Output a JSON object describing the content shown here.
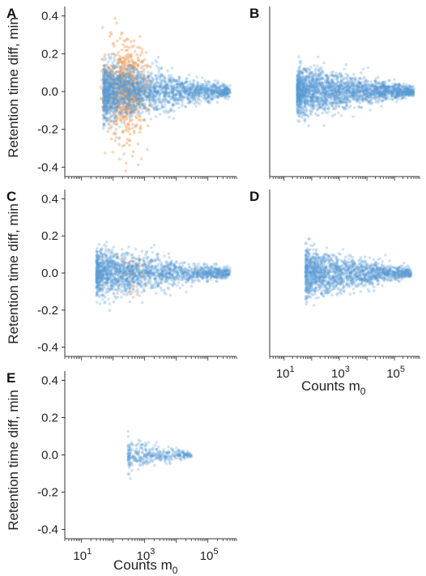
{
  "figure": {
    "ylabel": "Retention time diff, min",
    "xlabel": "Counts m",
    "xlabel_subscript": "0",
    "colors": {
      "series_1": "#5b9bd5",
      "series_2": "#f4a460",
      "axis": "#333333"
    }
  },
  "chart_data": [
    {
      "panel": "A",
      "type": "scatter",
      "x_scale": "log",
      "xlim": [
        3,
        800000
      ],
      "ylim": [
        -0.45,
        0.45
      ],
      "yticks": [
        "0.4",
        "0.2",
        "0.0",
        "-0.2",
        "-0.4"
      ],
      "xticks": [],
      "series": [
        {
          "color": "#f4a460",
          "x_range": [
            40,
            1500
          ],
          "y_spread": 0.12,
          "description_points": 700
        },
        {
          "color": "#5b9bd5",
          "x_range": [
            50,
            500000
          ],
          "y_spread": 0.06,
          "description_points": 2200
        }
      ]
    },
    {
      "panel": "B",
      "type": "scatter",
      "x_scale": "log",
      "xlim": [
        3,
        800000
      ],
      "ylim": [
        -0.45,
        0.45
      ],
      "yticks": [],
      "xticks": [],
      "series": [
        {
          "color": "#5b9bd5",
          "x_range": [
            30,
            500000
          ],
          "y_spread": 0.05,
          "description_points": 2200
        }
      ]
    },
    {
      "panel": "C",
      "type": "scatter",
      "x_scale": "log",
      "xlim": [
        3,
        800000
      ],
      "ylim": [
        -0.45,
        0.45
      ],
      "yticks": [
        "0.4",
        "0.2",
        "0.0",
        "-0.2",
        "-0.4"
      ],
      "xticks": [],
      "series": [
        {
          "color": "#f4a460",
          "x_range": [
            100,
            1500
          ],
          "y_spread": 0.05,
          "description_points": 40
        },
        {
          "color": "#5b9bd5",
          "x_range": [
            30,
            500000
          ],
          "y_spread": 0.05,
          "description_points": 1800
        }
      ]
    },
    {
      "panel": "D",
      "type": "scatter",
      "x_scale": "log",
      "xlim": [
        3,
        800000
      ],
      "ylim": [
        -0.45,
        0.45
      ],
      "yticks": [],
      "xticks": [
        "10",
        "10",
        "10"
      ],
      "xtick_exponents": [
        "1",
        "3",
        "5"
      ],
      "series": [
        {
          "color": "#5b9bd5",
          "x_range": [
            60,
            400000
          ],
          "y_spread": 0.05,
          "description_points": 1600
        }
      ]
    },
    {
      "panel": "E",
      "type": "scatter",
      "x_scale": "log",
      "xlim": [
        3,
        800000
      ],
      "ylim": [
        -0.45,
        0.45
      ],
      "yticks": [
        "0.4",
        "0.2",
        "0.0",
        "-0.2",
        "-0.4"
      ],
      "xticks": [
        "10",
        "10",
        "10"
      ],
      "xtick_exponents": [
        "1",
        "3",
        "5"
      ],
      "series": [
        {
          "color": "#5b9bd5",
          "x_range": [
            300,
            30000
          ],
          "y_spread": 0.03,
          "description_points": 350
        }
      ]
    }
  ]
}
